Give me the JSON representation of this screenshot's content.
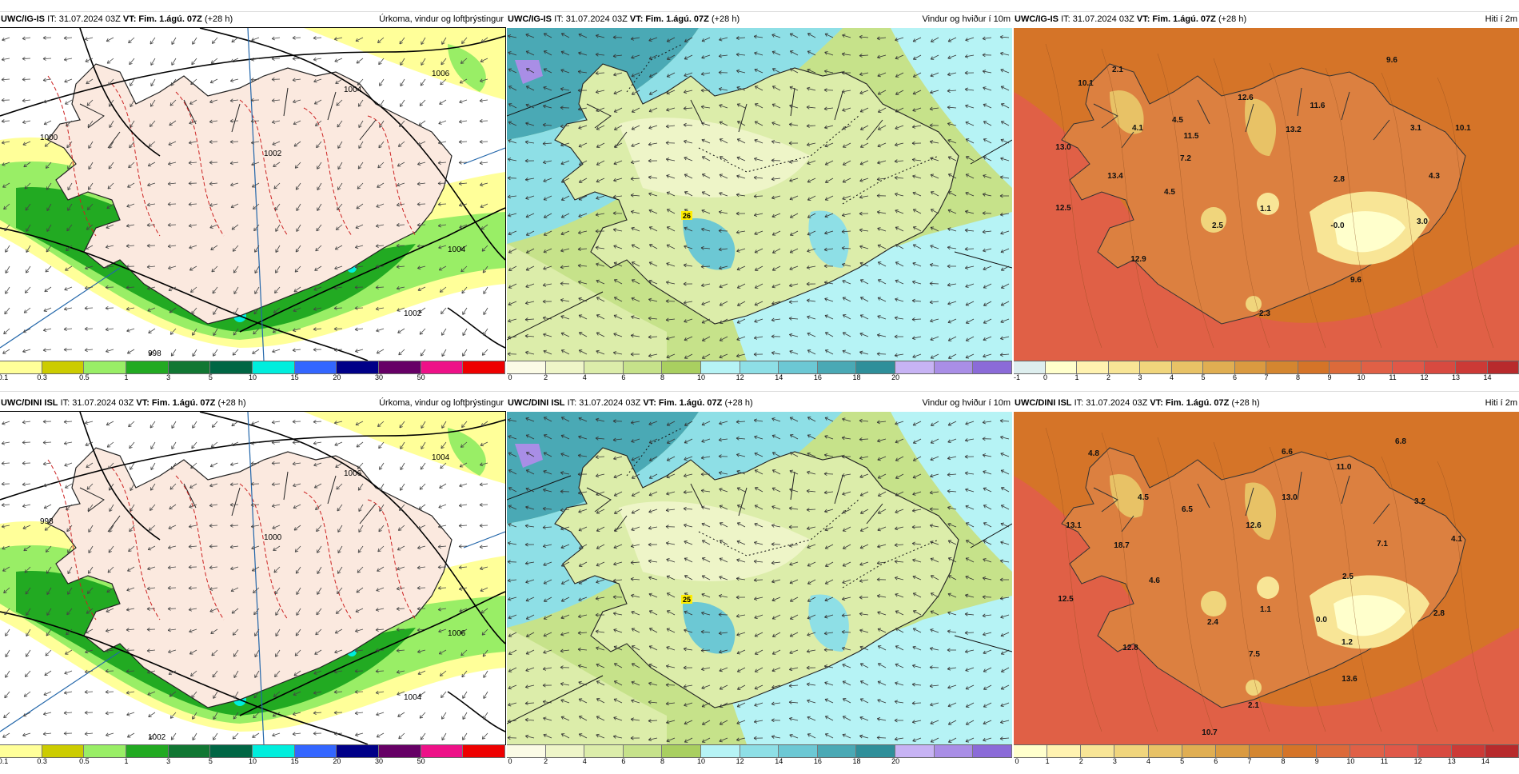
{
  "panels": [
    {
      "model": "UWC/IG-IS",
      "it": "IT: 31.07.2024 03Z",
      "vt": "VT: Fim. 1.ágú. 07Z",
      "lead": "(+28 h)",
      "title": "Úrkoma, vindur og loftþrýstingur",
      "scale_colors": [
        "#ffff99",
        "#cccc00",
        "#99ee66",
        "#22aa22",
        "#117733",
        "#006644",
        "#00eedd",
        "#3366ff",
        "#000088",
        "#660066",
        "#ee1188",
        "#ee0000"
      ],
      "ticks": [
        "0.1",
        "0.3",
        "0.5",
        "1",
        "3",
        "5",
        "10",
        "15",
        "20",
        "30",
        "50"
      ],
      "isobars": [
        "1004",
        "1006",
        "1002",
        "1004",
        "1002",
        "998",
        "1000"
      ]
    },
    {
      "model": "UWC/IG-IS",
      "it": "IT: 31.07.2024 03Z",
      "vt": "VT: Fim. 1.ágú. 07Z",
      "lead": "(+28 h)",
      "title": "Vindur og hviður í 10m",
      "scale_colors": [
        "#fbfbe6",
        "#eef5c8",
        "#dcedaa",
        "#c6e28a",
        "#a9cf60",
        "#b6f3f5",
        "#8edfe6",
        "#6cc8d4",
        "#4aa9b5",
        "#2f8f9a",
        "#c7b3f4",
        "#a98ee6",
        "#8b6bd8"
      ],
      "ticks": [
        "0",
        "2",
        "4",
        "6",
        "8",
        "10",
        "12",
        "14",
        "16",
        "18",
        "20"
      ],
      "labels": [
        {
          "t": "26"
        }
      ]
    },
    {
      "model": "UWC/IG-IS",
      "it": "IT: 31.07.2024 03Z",
      "vt": "VT: Fim. 1.ágú. 07Z",
      "lead": "(+28 h)",
      "title": "Hiti í 2m",
      "scale_colors": [
        "#ddeeee",
        "#ffffcc",
        "#fff2b0",
        "#f8e596",
        "#f0d57c",
        "#e8c266",
        "#e0ae52",
        "#da9a40",
        "#d48630",
        "#d57428",
        "#dc6a3a",
        "#e06046",
        "#e05848",
        "#d84a40",
        "#cc3a36",
        "#b82a2c"
      ],
      "ticks": [
        "-1",
        "0",
        "1",
        "2",
        "3",
        "4",
        "5",
        "6",
        "7",
        "8",
        "9",
        "10",
        "11",
        "12",
        "13",
        "14"
      ],
      "labels": [
        {
          "t": "2.1"
        },
        {
          "t": "10.1"
        },
        {
          "t": "4.5"
        },
        {
          "t": "12.6"
        },
        {
          "t": "11.6"
        },
        {
          "t": "9.6"
        },
        {
          "t": "4.1"
        },
        {
          "t": "11.5"
        },
        {
          "t": "13.2"
        },
        {
          "t": "3.1"
        },
        {
          "t": "10.1"
        },
        {
          "t": "13.0"
        },
        {
          "t": "7.2"
        },
        {
          "t": "13.4"
        },
        {
          "t": "2.8"
        },
        {
          "t": "4.3"
        },
        {
          "t": "4.5"
        },
        {
          "t": "1.1"
        },
        {
          "t": "12.5"
        },
        {
          "t": "2.5"
        },
        {
          "t": "-0.0"
        },
        {
          "t": "3.0"
        },
        {
          "t": "12.9"
        },
        {
          "t": "9.6"
        },
        {
          "t": "2.3"
        }
      ]
    },
    {
      "model": "UWC/DINI ISL",
      "it": "IT: 31.07.2024 03Z",
      "vt": "VT: Fim. 1.ágú. 07Z",
      "lead": "(+28 h)",
      "title": "Úrkoma, vindur og loftþrýstingur",
      "scale_colors": [
        "#ffff99",
        "#cccc00",
        "#99ee66",
        "#22aa22",
        "#117733",
        "#006644",
        "#00eedd",
        "#3366ff",
        "#000088",
        "#660066",
        "#ee1188",
        "#ee0000"
      ],
      "ticks": [
        "0.1",
        "0.3",
        "0.5",
        "1",
        "3",
        "5",
        "10",
        "15",
        "20",
        "30",
        "50"
      ],
      "isobars": [
        "1006",
        "1004",
        "1000",
        "1006",
        "1004",
        "1002",
        "998"
      ]
    },
    {
      "model": "UWC/DINI ISL",
      "it": "IT: 31.07.2024 03Z",
      "vt": "VT: Fim. 1.ágú. 07Z",
      "lead": "(+28 h)",
      "title": "Vindur og hviður í 10m",
      "scale_colors": [
        "#fbfbe6",
        "#eef5c8",
        "#dcedaa",
        "#c6e28a",
        "#a9cf60",
        "#b6f3f5",
        "#8edfe6",
        "#6cc8d4",
        "#4aa9b5",
        "#2f8f9a",
        "#c7b3f4",
        "#a98ee6",
        "#8b6bd8"
      ],
      "ticks": [
        "0",
        "2",
        "4",
        "6",
        "8",
        "10",
        "12",
        "14",
        "16",
        "18",
        "20"
      ],
      "labels": [
        {
          "t": "25"
        }
      ]
    },
    {
      "model": "UWC/DINI ISL",
      "it": "IT: 31.07.2024 03Z",
      "vt": "VT: Fim. 1.ágú. 07Z",
      "lead": "(+28 h)",
      "title": "Hiti í 2m",
      "scale_colors": [
        "#ffffcc",
        "#fff2b0",
        "#f8e596",
        "#f0d57c",
        "#e8c266",
        "#e0ae52",
        "#da9a40",
        "#d48630",
        "#d57428",
        "#dc6a3a",
        "#e06046",
        "#e05848",
        "#d84a40",
        "#cc3a36",
        "#b82a2c"
      ],
      "ticks": [
        "0",
        "1",
        "2",
        "3",
        "4",
        "5",
        "6",
        "7",
        "8",
        "9",
        "10",
        "11",
        "12",
        "13",
        "14"
      ],
      "labels": [
        {
          "t": "4.8"
        },
        {
          "t": "6.6"
        },
        {
          "t": "6.8"
        },
        {
          "t": "11.0"
        },
        {
          "t": "4.5"
        },
        {
          "t": "6.5"
        },
        {
          "t": "13.0"
        },
        {
          "t": "13.1"
        },
        {
          "t": "12.6"
        },
        {
          "t": "3.2"
        },
        {
          "t": "18.7"
        },
        {
          "t": "7.1"
        },
        {
          "t": "4.1"
        },
        {
          "t": "4.6"
        },
        {
          "t": "2.5"
        },
        {
          "t": "12.5"
        },
        {
          "t": "2.4"
        },
        {
          "t": "1.1"
        },
        {
          "t": "0.0"
        },
        {
          "t": "2.8"
        },
        {
          "t": "1.2"
        },
        {
          "t": "12.8"
        },
        {
          "t": "7.5"
        },
        {
          "t": "13.6"
        },
        {
          "t": "2.1"
        },
        {
          "t": "10.7"
        }
      ]
    }
  ]
}
